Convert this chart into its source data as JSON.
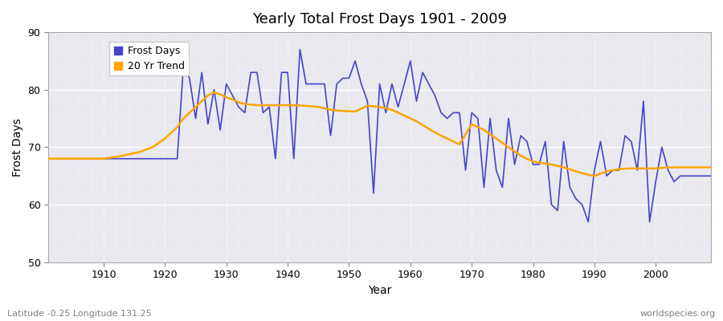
{
  "title": "Yearly Total Frost Days 1901 - 2009",
  "xlabel": "Year",
  "ylabel": "Frost Days",
  "subtitle": "Latitude -0.25 Longitude 131.25",
  "watermark": "worldspecies.org",
  "ylim": [
    50,
    90
  ],
  "xlim": [
    1901,
    2009
  ],
  "yticks": [
    50,
    60,
    70,
    80,
    90
  ],
  "xticks": [
    1910,
    1920,
    1930,
    1940,
    1950,
    1960,
    1970,
    1980,
    1990,
    2000
  ],
  "frost_color": "#4444cc",
  "trend_color": "#FFA500",
  "bg_color": "#e8e8ee",
  "fig_color": "#ffffff",
  "grid_color": "#ffffff",
  "legend_frost": "Frost Days",
  "legend_trend": "20 Yr Trend",
  "frost_days": [
    68,
    68,
    68,
    68,
    68,
    68,
    68,
    68,
    68,
    68,
    68,
    68,
    68,
    68,
    68,
    68,
    68,
    68,
    68,
    68,
    68,
    68,
    84,
    82,
    75,
    83,
    74,
    80,
    73,
    81,
    79,
    77,
    76,
    83,
    83,
    76,
    77,
    68,
    83,
    83,
    68,
    87,
    81,
    81,
    81,
    81,
    72,
    81,
    82,
    82,
    85,
    81,
    78,
    62,
    81,
    76,
    81,
    77,
    81,
    85,
    78,
    83,
    81,
    79,
    76,
    75,
    76,
    76,
    66,
    76,
    75,
    63,
    75,
    66,
    63,
    75,
    67,
    72,
    71,
    67,
    67,
    71,
    60,
    59,
    71,
    63,
    61,
    60,
    57,
    66,
    71,
    65,
    66,
    66,
    72,
    71,
    66,
    78,
    57,
    64,
    70,
    66,
    64,
    65,
    65,
    65,
    65,
    65,
    65
  ],
  "trend_years": [
    1901,
    1910,
    1913,
    1916,
    1918,
    1920,
    1922,
    1923,
    1924,
    1925,
    1926,
    1927,
    1928,
    1929,
    1930,
    1931,
    1932,
    1933,
    1935,
    1937,
    1939,
    1941,
    1943,
    1945,
    1947,
    1949,
    1951,
    1953,
    1955,
    1957,
    1959,
    1961,
    1963,
    1965,
    1967,
    1968,
    1970,
    1972,
    1974,
    1976,
    1978,
    1980,
    1981,
    1983,
    1985,
    1987,
    1989,
    1990,
    1992,
    1994,
    1996,
    1998,
    2000,
    2002,
    2005,
    2009
  ],
  "trend_vals": [
    68,
    68,
    68.5,
    69.2,
    70.0,
    71.5,
    73.5,
    75.0,
    76.0,
    77.0,
    78.0,
    79.0,
    79.5,
    79.2,
    78.7,
    78.3,
    77.8,
    77.5,
    77.3,
    77.3,
    77.3,
    77.3,
    77.2,
    77.0,
    76.5,
    76.3,
    76.2,
    77.2,
    77.0,
    76.5,
    75.5,
    74.5,
    73.2,
    72.0,
    71.0,
    70.5,
    74.0,
    73.0,
    71.5,
    70.0,
    68.5,
    67.5,
    67.3,
    67.0,
    66.5,
    65.8,
    65.2,
    65.0,
    65.8,
    66.2,
    66.3,
    66.3,
    66.3,
    66.5,
    66.5,
    66.5
  ]
}
